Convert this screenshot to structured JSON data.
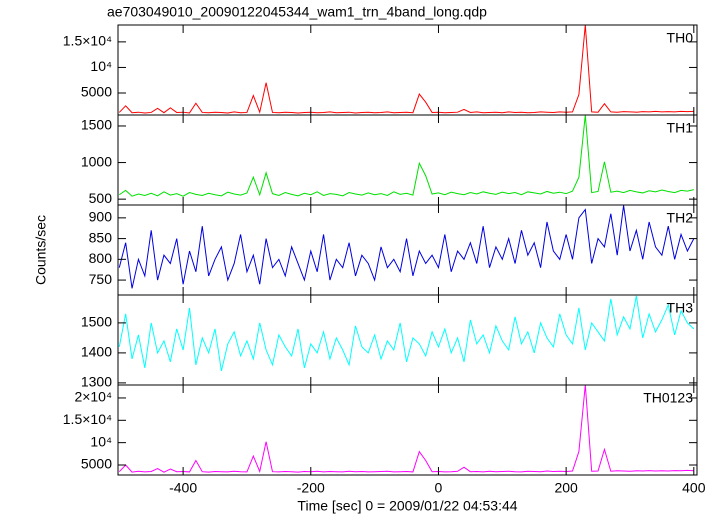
{
  "chart_data": [
    {
      "type": "line",
      "title": "ae703049010_20090122045344_wam1_trn_4band_long.qdp",
      "name": "TH0",
      "color": "#ff0000",
      "x": [
        -500,
        -490,
        -480,
        -470,
        -460,
        -450,
        -440,
        -430,
        -420,
        -410,
        -400,
        -390,
        -380,
        -370,
        -360,
        -350,
        -340,
        -330,
        -320,
        -310,
        -300,
        -290,
        -280,
        -270,
        -260,
        -250,
        -240,
        -230,
        -220,
        -210,
        -200,
        -190,
        -180,
        -170,
        -160,
        -150,
        -140,
        -130,
        -120,
        -110,
        -100,
        -90,
        -80,
        -70,
        -60,
        -50,
        -40,
        -30,
        -20,
        -10,
        0,
        10,
        20,
        30,
        40,
        50,
        60,
        70,
        80,
        90,
        100,
        110,
        120,
        130,
        140,
        150,
        160,
        170,
        180,
        190,
        200,
        210,
        220,
        230,
        240,
        250,
        260,
        270,
        280,
        290,
        300,
        310,
        320,
        330,
        340,
        350,
        360,
        370,
        380,
        390,
        400
      ],
      "values": [
        1200,
        2500,
        1150,
        1250,
        1100,
        1200,
        2000,
        1150,
        2100,
        1200,
        1250,
        1100,
        3000,
        1200,
        1150,
        1250,
        1200,
        1100,
        1300,
        1150,
        1200,
        4500,
        1250,
        7000,
        1200,
        1150,
        1250,
        1200,
        1100,
        1200,
        1250,
        1150,
        1200,
        1300,
        1150,
        1200,
        1250,
        1100,
        1200,
        1250,
        1150,
        1200,
        1300,
        1150,
        1200,
        1250,
        1150,
        4800,
        3200,
        1200,
        1250,
        1150,
        1200,
        1250,
        1800,
        1200,
        1300,
        1150,
        1200,
        1250,
        1150,
        1300,
        1200,
        1250,
        1150,
        1200,
        1300,
        1250,
        1200,
        1300,
        1250,
        1300,
        4700,
        18300,
        1300,
        1250,
        2900,
        1300,
        1250,
        1350,
        1300,
        1250,
        1350,
        1300,
        1400,
        1300,
        1350,
        1300,
        1400,
        1350,
        1400
      ],
      "xlim": [
        -502,
        405
      ],
      "ylim": [
        700,
        18300
      ],
      "yticks": [
        5000,
        {
          "value": 10000,
          "label": "10⁴"
        },
        {
          "value": 15000,
          "label": "1.5×10⁴"
        }
      ]
    },
    {
      "type": "line",
      "name": "TH1",
      "color": "#00e000",
      "x": [
        -500,
        -490,
        -480,
        -470,
        -460,
        -450,
        -440,
        -430,
        -420,
        -410,
        -400,
        -390,
        -380,
        -370,
        -360,
        -350,
        -340,
        -330,
        -320,
        -310,
        -300,
        -290,
        -280,
        -270,
        -260,
        -250,
        -240,
        -230,
        -220,
        -210,
        -200,
        -190,
        -180,
        -170,
        -160,
        -150,
        -140,
        -130,
        -120,
        -110,
        -100,
        -90,
        -80,
        -70,
        -60,
        -50,
        -40,
        -30,
        -20,
        -10,
        0,
        10,
        20,
        30,
        40,
        50,
        60,
        70,
        80,
        90,
        100,
        110,
        120,
        130,
        140,
        150,
        160,
        170,
        180,
        190,
        200,
        210,
        220,
        230,
        240,
        250,
        260,
        270,
        280,
        290,
        300,
        310,
        320,
        330,
        340,
        350,
        360,
        370,
        380,
        390,
        400
      ],
      "values": [
        560,
        620,
        540,
        570,
        550,
        580,
        545,
        600,
        555,
        575,
        540,
        590,
        565,
        550,
        580,
        560,
        545,
        595,
        570,
        555,
        585,
        800,
        560,
        860,
        575,
        550,
        590,
        565,
        545,
        580,
        560,
        600,
        550,
        575,
        565,
        545,
        590,
        570,
        555,
        585,
        560,
        575,
        550,
        600,
        565,
        580,
        555,
        990,
        820,
        570,
        585,
        560,
        595,
        575,
        560,
        590,
        570,
        600,
        580,
        565,
        595,
        575,
        590,
        560,
        600,
        585,
        570,
        605,
        580,
        595,
        575,
        610,
        800,
        1650,
        590,
        605,
        1010,
        595,
        610,
        590,
        620,
        600,
        585,
        615,
        600,
        625,
        605,
        590,
        620,
        610,
        630
      ],
      "xlim": [
        -502,
        405
      ],
      "ylim": [
        420,
        1650
      ],
      "yticks": [
        500,
        1000,
        1500
      ]
    },
    {
      "type": "line",
      "name": "TH2",
      "color": "#0000e0",
      "y_label": "Counts/sec",
      "x": [
        -500,
        -490,
        -480,
        -470,
        -460,
        -450,
        -440,
        -430,
        -420,
        -410,
        -400,
        -390,
        -380,
        -370,
        -360,
        -350,
        -340,
        -330,
        -320,
        -310,
        -300,
        -290,
        -280,
        -270,
        -260,
        -250,
        -240,
        -230,
        -220,
        -210,
        -200,
        -190,
        -180,
        -170,
        -160,
        -150,
        -140,
        -130,
        -120,
        -110,
        -100,
        -90,
        -80,
        -70,
        -60,
        -50,
        -40,
        -30,
        -20,
        -10,
        0,
        10,
        20,
        30,
        40,
        50,
        60,
        70,
        80,
        90,
        100,
        110,
        120,
        130,
        140,
        150,
        160,
        170,
        180,
        190,
        200,
        210,
        220,
        230,
        240,
        250,
        260,
        270,
        280,
        290,
        300,
        310,
        320,
        330,
        340,
        350,
        360,
        370,
        380,
        390,
        400
      ],
      "values": [
        780,
        840,
        730,
        800,
        760,
        870,
        750,
        810,
        790,
        850,
        740,
        820,
        770,
        880,
        760,
        800,
        830,
        750,
        790,
        860,
        770,
        810,
        740,
        850,
        780,
        800,
        760,
        830,
        790,
        750,
        820,
        770,
        860,
        750,
        800,
        780,
        840,
        760,
        810,
        790,
        750,
        830,
        780,
        800,
        770,
        850,
        760,
        820,
        790,
        810,
        780,
        860,
        770,
        820,
        800,
        840,
        790,
        880,
        780,
        830,
        800,
        850,
        790,
        870,
        810,
        840,
        780,
        890,
        820,
        800,
        860,
        800,
        900,
        920,
        790,
        850,
        830,
        910,
        810,
        930,
        820,
        870,
        800,
        890,
        830,
        810,
        880,
        800,
        860,
        820,
        850
      ],
      "xlim": [
        -502,
        405
      ],
      "ylim": [
        714,
        931
      ],
      "yticks": [
        750,
        800,
        850,
        900
      ]
    },
    {
      "type": "line",
      "name": "TH3",
      "color": "#00ffff",
      "x": [
        -500,
        -490,
        -480,
        -470,
        -460,
        -450,
        -440,
        -430,
        -420,
        -410,
        -400,
        -390,
        -380,
        -370,
        -360,
        -350,
        -340,
        -330,
        -320,
        -310,
        -300,
        -290,
        -280,
        -270,
        -260,
        -250,
        -240,
        -230,
        -220,
        -210,
        -200,
        -190,
        -180,
        -170,
        -160,
        -150,
        -140,
        -130,
        -120,
        -110,
        -100,
        -90,
        -80,
        -70,
        -60,
        -50,
        -40,
        -30,
        -20,
        -10,
        0,
        10,
        20,
        30,
        40,
        50,
        60,
        70,
        80,
        90,
        100,
        110,
        120,
        130,
        140,
        150,
        160,
        170,
        180,
        190,
        200,
        210,
        220,
        230,
        240,
        250,
        260,
        270,
        280,
        290,
        300,
        310,
        320,
        330,
        340,
        350,
        360,
        370,
        380,
        390,
        400
      ],
      "values": [
        1420,
        1530,
        1380,
        1460,
        1350,
        1500,
        1400,
        1440,
        1370,
        1480,
        1410,
        1550,
        1360,
        1450,
        1400,
        1480,
        1340,
        1430,
        1470,
        1390,
        1440,
        1380,
        1500,
        1410,
        1360,
        1460,
        1420,
        1390,
        1480,
        1350,
        1430,
        1400,
        1470,
        1380,
        1450,
        1410,
        1360,
        1490,
        1420,
        1400,
        1460,
        1380,
        1440,
        1410,
        1500,
        1370,
        1450,
        1430,
        1390,
        1470,
        1420,
        1480,
        1400,
        1450,
        1370,
        1510,
        1430,
        1460,
        1400,
        1490,
        1440,
        1410,
        1520,
        1430,
        1470,
        1400,
        1500,
        1450,
        1420,
        1530,
        1460,
        1430,
        1550,
        1410,
        1500,
        1470,
        1440,
        1580,
        1460,
        1520,
        1480,
        1590,
        1450,
        1530,
        1470,
        1510,
        1560,
        1460,
        1540,
        1500,
        1480
      ],
      "xlim": [
        -502,
        405
      ],
      "ylim": [
        1293,
        1593
      ],
      "yticks": [
        1300,
        1400,
        1500
      ]
    },
    {
      "type": "line",
      "name": "TH0123",
      "color": "#ff00ff",
      "x_label": "Time [sec] 0 = 2009/01/22 04:53:44",
      "x": [
        -500,
        -490,
        -480,
        -470,
        -460,
        -450,
        -440,
        -430,
        -420,
        -410,
        -400,
        -390,
        -380,
        -370,
        -360,
        -350,
        -340,
        -330,
        -320,
        -310,
        -300,
        -290,
        -280,
        -270,
        -260,
        -250,
        -240,
        -230,
        -220,
        -210,
        -200,
        -190,
        -180,
        -170,
        -160,
        -150,
        -140,
        -130,
        -120,
        -110,
        -100,
        -90,
        -80,
        -70,
        -60,
        -50,
        -40,
        -30,
        -20,
        -10,
        0,
        10,
        20,
        30,
        40,
        50,
        60,
        70,
        80,
        90,
        100,
        110,
        120,
        130,
        140,
        150,
        160,
        170,
        180,
        190,
        200,
        210,
        220,
        230,
        240,
        250,
        260,
        270,
        280,
        290,
        300,
        310,
        320,
        330,
        340,
        350,
        360,
        370,
        380,
        390,
        400
      ],
      "values": [
        3500,
        5000,
        3400,
        3600,
        3450,
        3550,
        4200,
        3400,
        4100,
        3500,
        3550,
        3450,
        6000,
        3500,
        3400,
        3550,
        3500,
        3450,
        3600,
        3500,
        3450,
        7000,
        3550,
        10200,
        3500,
        3450,
        3550,
        3500,
        3400,
        3550,
        3500,
        3600,
        3450,
        3550,
        3500,
        3450,
        3600,
        3500,
        3550,
        3450,
        3500,
        3550,
        3600,
        3450,
        3500,
        3550,
        3450,
        8000,
        6000,
        3500,
        3550,
        3450,
        3500,
        3600,
        4500,
        3500,
        3550,
        3450,
        3600,
        3500,
        3550,
        3600,
        3500,
        3450,
        3600,
        3550,
        3500,
        3650,
        3550,
        3600,
        3550,
        3650,
        8000,
        22900,
        3600,
        3650,
        8500,
        3600,
        3700,
        3650,
        3600,
        3700,
        3650,
        3750,
        3650,
        3700,
        3650,
        3750,
        3700,
        3800,
        3700
      ],
      "xlim": [
        -502,
        405
      ],
      "ylim": [
        2760,
        22900
      ],
      "yticks": [
        5000,
        {
          "value": 10000,
          "label": "10⁴"
        },
        {
          "value": 15000,
          "label": "1.5×10⁴"
        },
        {
          "value": 20000,
          "label": "2×10⁴"
        }
      ],
      "xticks": [
        -400,
        -200,
        0,
        200,
        400
      ]
    }
  ]
}
